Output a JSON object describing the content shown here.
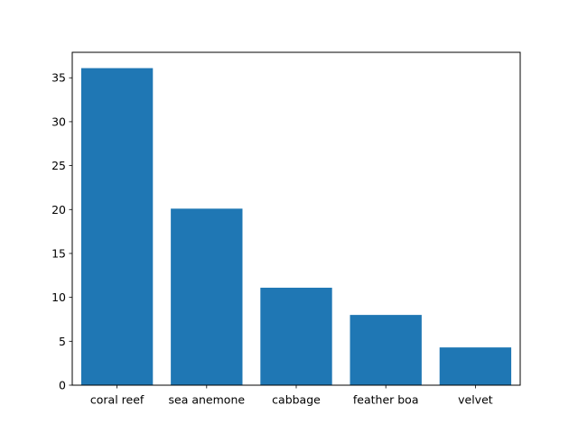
{
  "chart_data": {
    "type": "bar",
    "title": "",
    "xlabel": "",
    "ylabel": "",
    "categories": [
      "coral reef",
      "sea anemone",
      "cabbage",
      "feather boa",
      "velvet"
    ],
    "values": [
      36.1,
      20.1,
      11.1,
      8.0,
      4.3
    ],
    "ylim": [
      0,
      37.9
    ],
    "yticks": [
      0,
      5,
      10,
      15,
      20,
      25,
      30,
      35
    ],
    "bar_color": "#1f77b4",
    "grid": false,
    "legend": "none"
  }
}
